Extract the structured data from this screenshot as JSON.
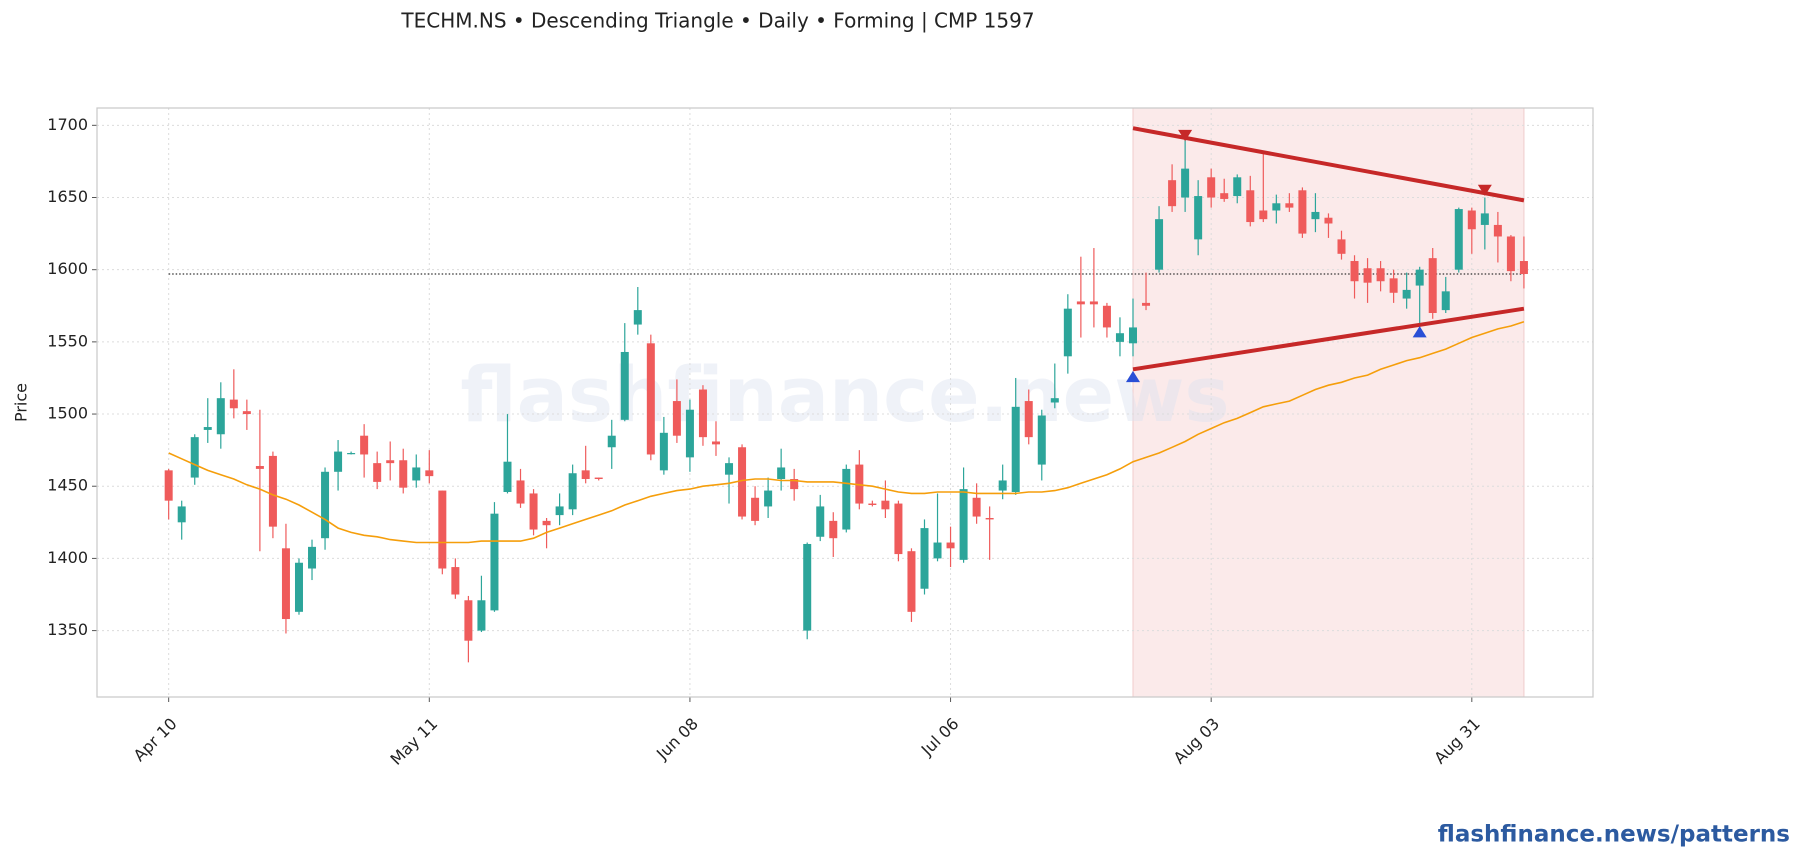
{
  "chart_data": {
    "type": "candlestick",
    "title": "TECHM.NS  •  Descending Triangle  •  Daily  •  Forming  |  CMP 1597",
    "y_label": "Price",
    "watermark": "flashfinance.news",
    "footer": "flashfinance.news/patterns",
    "categories": [
      "Apr 10",
      null,
      null,
      null,
      null,
      null,
      null,
      null,
      null,
      null,
      null,
      null,
      null,
      null,
      null,
      null,
      null,
      null,
      null,
      null,
      "May 11",
      null,
      null,
      null,
      null,
      null,
      null,
      null,
      null,
      null,
      null,
      null,
      null,
      null,
      null,
      null,
      null,
      null,
      null,
      null,
      "Jun 08",
      null,
      null,
      null,
      null,
      null,
      null,
      null,
      null,
      null,
      null,
      null,
      null,
      null,
      null,
      null,
      null,
      null,
      null,
      null,
      "Jul 06",
      null,
      null,
      null,
      null,
      null,
      null,
      null,
      null,
      null,
      null,
      null,
      null,
      null,
      null,
      null,
      null,
      null,
      null,
      null,
      "Aug 03",
      null,
      null,
      null,
      null,
      null,
      null,
      null,
      null,
      null,
      null,
      null,
      null,
      null,
      null,
      null,
      null,
      null,
      null,
      null,
      "Aug 31",
      null,
      null,
      null,
      null
    ],
    "open": [
      1461,
      1425,
      1456,
      1489,
      1486,
      1510,
      1502,
      1464,
      1471,
      1407,
      1363,
      1393,
      1414,
      1460,
      1473,
      1485,
      1466,
      1468,
      1468,
      1454,
      1461,
      1447,
      1394,
      1371,
      1350,
      1364,
      1446,
      1454,
      1445,
      1426,
      1430,
      1434,
      1461,
      1456,
      1477,
      1496,
      1562,
      1549,
      1461,
      1509,
      1470,
      1517,
      1481,
      1458,
      1477,
      1442,
      1436,
      1455,
      1455,
      1350,
      1415,
      1426,
      1420,
      1465,
      1438,
      1440,
      1438,
      1405,
      1379,
      1400,
      1411,
      1399,
      1442,
      1428,
      1447,
      1446,
      1509,
      1465,
      1508,
      1540,
      1578,
      1578,
      1575,
      1550,
      1549,
      1577,
      1600,
      1662,
      1650,
      1621,
      1664,
      1653,
      1651,
      1655,
      1641,
      1641,
      1646,
      1655,
      1635,
      1636,
      1621,
      1606,
      1601,
      1601,
      1594,
      1580,
      1589,
      1608,
      1572,
      1600,
      1641,
      1631,
      1631,
      1623,
      1606
    ],
    "high": [
      1462,
      1440,
      1486,
      1511,
      1522,
      1531,
      1510,
      1503,
      1474,
      1424,
      1400,
      1413,
      1463,
      1482,
      1474,
      1493,
      1474,
      1481,
      1476,
      1472,
      1475,
      1447,
      1400,
      1374,
      1388,
      1439,
      1500,
      1462,
      1448,
      1428,
      1445,
      1465,
      1478,
      1456,
      1496,
      1563,
      1588,
      1555,
      1498,
      1524,
      1510,
      1520,
      1495,
      1470,
      1479,
      1450,
      1456,
      1476,
      1462,
      1411,
      1444,
      1432,
      1465,
      1475,
      1440,
      1454,
      1440,
      1407,
      1427,
      1445,
      1422,
      1463,
      1452,
      1436,
      1465,
      1525,
      1517,
      1503,
      1535,
      1583,
      1609,
      1615,
      1577,
      1567,
      1580,
      1598,
      1644,
      1673,
      1693,
      1662,
      1670,
      1663,
      1666,
      1665,
      1682,
      1652,
      1653,
      1657,
      1653,
      1639,
      1627,
      1610,
      1608,
      1606,
      1600,
      1598,
      1602,
      1615,
      1595,
      1643,
      1643,
      1650,
      1640,
      1624,
      1623
    ],
    "low": [
      1427,
      1413,
      1451,
      1480,
      1476,
      1497,
      1489,
      1405,
      1414,
      1348,
      1361,
      1385,
      1406,
      1447,
      1472,
      1456,
      1448,
      1454,
      1445,
      1449,
      1452,
      1389,
      1372,
      1328,
      1349,
      1363,
      1445,
      1435,
      1416,
      1407,
      1423,
      1430,
      1452,
      1454,
      1462,
      1495,
      1555,
      1468,
      1458,
      1480,
      1460,
      1478,
      1471,
      1438,
      1427,
      1423,
      1428,
      1447,
      1440,
      1344,
      1412,
      1401,
      1418,
      1434,
      1436,
      1428,
      1398,
      1356,
      1375,
      1398,
      1394,
      1397,
      1424,
      1399,
      1441,
      1444,
      1479,
      1454,
      1504,
      1528,
      1553,
      1560,
      1553,
      1540,
      1540,
      1572,
      1598,
      1640,
      1640,
      1610,
      1643,
      1647,
      1646,
      1630,
      1633,
      1632,
      1640,
      1622,
      1626,
      1622,
      1607,
      1580,
      1577,
      1585,
      1577,
      1573,
      1560,
      1566,
      1570,
      1598,
      1611,
      1614,
      1605,
      1592,
      1587
    ],
    "close": [
      1440,
      1436,
      1484,
      1491,
      1511,
      1504,
      1500,
      1462,
      1422,
      1358,
      1397,
      1408,
      1460,
      1474,
      1473,
      1472,
      1453,
      1466,
      1449,
      1463,
      1457,
      1393,
      1375,
      1343,
      1371,
      1431,
      1467,
      1438,
      1420,
      1423,
      1436,
      1459,
      1455,
      1455,
      1485,
      1543,
      1572,
      1472,
      1487,
      1485,
      1503,
      1484,
      1479,
      1466,
      1429,
      1426,
      1447,
      1463,
      1448,
      1410,
      1436,
      1414,
      1462,
      1438,
      1437,
      1434,
      1403,
      1363,
      1421,
      1411,
      1407,
      1448,
      1429,
      1427,
      1454,
      1505,
      1484,
      1499,
      1511,
      1573,
      1576,
      1576,
      1560,
      1556,
      1560,
      1575,
      1635,
      1644,
      1670,
      1651,
      1650,
      1649,
      1664,
      1633,
      1635,
      1646,
      1643,
      1625,
      1640,
      1632,
      1611,
      1592,
      1591,
      1592,
      1584,
      1586,
      1600,
      1570,
      1585,
      1642,
      1628,
      1639,
      1623,
      1599,
      1597
    ],
    "up_color": "#2ca59a",
    "down_color": "#ef5b5b",
    "ma": {
      "color": "#f59e0b",
      "values": [
        1473,
        1469,
        1465,
        1461,
        1458,
        1455,
        1451,
        1448,
        1444,
        1441,
        1437,
        1432,
        1427,
        1421,
        1418,
        1416,
        1415,
        1413,
        1412,
        1411,
        1411,
        1411,
        1411,
        1411,
        1412,
        1412,
        1412,
        1412,
        1414,
        1418,
        1421,
        1424,
        1427,
        1430,
        1433,
        1437,
        1440,
        1443,
        1445,
        1447,
        1448,
        1450,
        1451,
        1452,
        1454,
        1455,
        1455,
        1454,
        1454,
        1453,
        1453,
        1453,
        1452,
        1451,
        1450,
        1448,
        1446,
        1445,
        1445,
        1446,
        1446,
        1446,
        1445,
        1445,
        1445,
        1445,
        1446,
        1446,
        1447,
        1449,
        1452,
        1455,
        1458,
        1462,
        1467,
        1470,
        1473,
        1477,
        1481,
        1486,
        1490,
        1494,
        1497,
        1501,
        1505,
        1507,
        1509,
        1513,
        1517,
        1520,
        1522,
        1525,
        1527,
        1531,
        1534,
        1537,
        1539,
        1542,
        1545,
        1549,
        1553,
        1556,
        1559,
        1561,
        1564
      ]
    },
    "reference_line": 1597,
    "shade": {
      "x": [
        74,
        104
      ],
      "color": "#fbeaea"
    },
    "upper_line": {
      "x": [
        74,
        104
      ],
      "values": [
        1698,
        1648
      ],
      "color": "#c62828"
    },
    "lower_line": {
      "x": [
        74,
        104
      ],
      "values": [
        1531,
        1573
      ],
      "color": "#c62828"
    },
    "high_markers": {
      "x": [
        78,
        101
      ],
      "values": [
        1692,
        1654
      ],
      "color": "#c62828"
    },
    "low_markers": {
      "x": [
        74,
        96
      ],
      "values": [
        1527,
        1558
      ],
      "color": "#2a4fd6"
    },
    "xlim": [
      -5.5,
      109.3
    ],
    "ylim": [
      1304,
      1712
    ],
    "yticks": [
      1350,
      1400,
      1450,
      1500,
      1550,
      1600,
      1650,
      1700
    ],
    "grid": true
  }
}
